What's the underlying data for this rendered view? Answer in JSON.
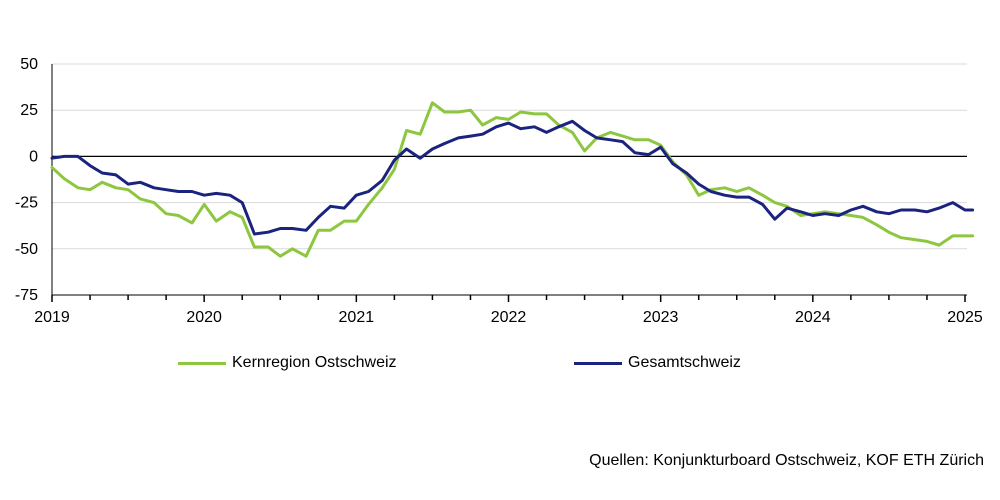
{
  "chart_data": {
    "type": "line",
    "title": "",
    "xlabel": "",
    "ylabel": "",
    "ylim": [
      -75,
      50
    ],
    "yticks": [
      50,
      25,
      0,
      -25,
      -50,
      -75
    ],
    "xlim": [
      2019.0,
      2025.05
    ],
    "xtick_labels": [
      "2019",
      "2020",
      "2021",
      "2022",
      "2023",
      "2024",
      "2025"
    ],
    "grid": "horizontal",
    "zero_line": true,
    "legend_position": "bottom",
    "x": [
      2019.0,
      2019.08,
      2019.17,
      2019.25,
      2019.33,
      2019.42,
      2019.5,
      2019.58,
      2019.67,
      2019.75,
      2019.83,
      2019.92,
      2020.0,
      2020.08,
      2020.17,
      2020.25,
      2020.33,
      2020.42,
      2020.5,
      2020.58,
      2020.67,
      2020.75,
      2020.83,
      2020.92,
      2021.0,
      2021.08,
      2021.17,
      2021.25,
      2021.33,
      2021.42,
      2021.5,
      2021.58,
      2021.67,
      2021.75,
      2021.83,
      2021.92,
      2022.0,
      2022.08,
      2022.17,
      2022.25,
      2022.33,
      2022.42,
      2022.5,
      2022.58,
      2022.67,
      2022.75,
      2022.83,
      2022.92,
      2023.0,
      2023.08,
      2023.17,
      2023.25,
      2023.33,
      2023.42,
      2023.5,
      2023.58,
      2023.67,
      2023.75,
      2023.83,
      2023.92,
      2024.0,
      2024.08,
      2024.17,
      2024.25,
      2024.33,
      2024.42,
      2024.5,
      2024.58,
      2024.67,
      2024.75,
      2024.83,
      2024.92,
      2025.0,
      2025.05
    ],
    "series": [
      {
        "name": "Kernregion Ostschweiz",
        "color": "#8dc63f",
        "values": [
          -6,
          -12,
          -17,
          -18,
          -14,
          -17,
          -18,
          -23,
          -25,
          -31,
          -32,
          -36,
          -26,
          -35,
          -30,
          -33,
          -49,
          -49,
          -54,
          -50,
          -54,
          -40,
          -40,
          -35,
          -35,
          -26,
          -17,
          -7,
          14,
          12,
          29,
          24,
          24,
          25,
          17,
          21,
          20,
          24,
          23,
          23,
          17,
          13,
          3,
          10,
          13,
          11,
          9,
          9,
          6,
          -3,
          -10,
          -21,
          -18,
          -17,
          -19,
          -17,
          -21,
          -25,
          -27,
          -32,
          -31,
          -30,
          -31,
          -32,
          -33,
          -37,
          -41,
          -44,
          -45,
          -46,
          -48,
          -43,
          -43,
          -43
        ]
      },
      {
        "name": "Gesamtschweiz",
        "color": "#1a237e",
        "values": [
          -1,
          0,
          0,
          -5,
          -9,
          -10,
          -15,
          -14,
          -17,
          -18,
          -19,
          -19,
          -21,
          -20,
          -21,
          -25,
          -42,
          -41,
          -39,
          -39,
          -40,
          -33,
          -27,
          -28,
          -21,
          -19,
          -13,
          -2,
          4,
          -1,
          4,
          7,
          10,
          11,
          12,
          16,
          18,
          15,
          16,
          13,
          16,
          19,
          14,
          10,
          9,
          8,
          2,
          1,
          5,
          -4,
          -9,
          -15,
          -19,
          -21,
          -22,
          -22,
          -26,
          -34,
          -28,
          -30,
          -32,
          -31,
          -32,
          -29,
          -27,
          -30,
          -31,
          -29,
          -29,
          -30,
          -28,
          -25,
          -29,
          -29
        ]
      }
    ]
  },
  "source_text": "Quellen: Konjunkturboard Ostschweiz, KOF ETH Zürich"
}
